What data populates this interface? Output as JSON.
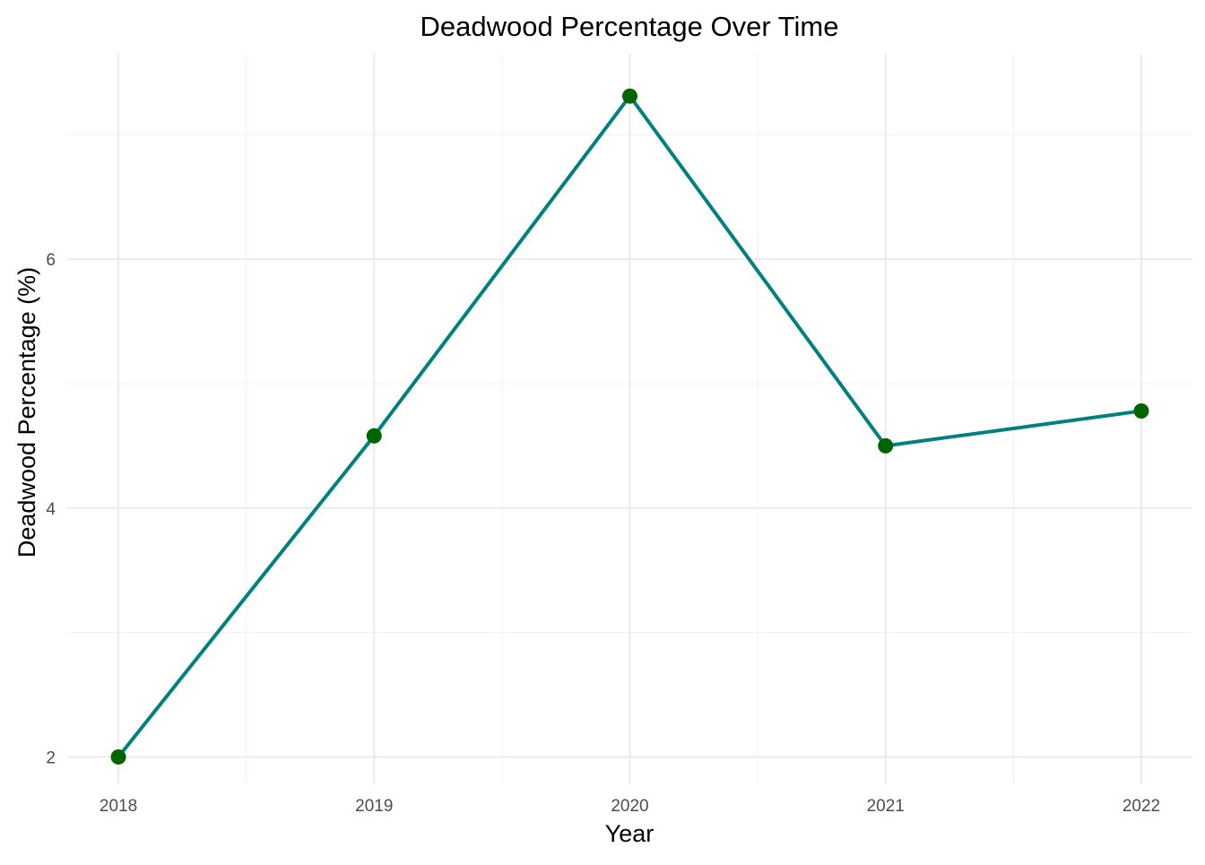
{
  "chart_data": {
    "type": "line",
    "title": "Deadwood Percentage Over Time",
    "xlabel": "Year",
    "ylabel": "Deadwood Percentage (%)",
    "x": [
      2018,
      2019,
      2020,
      2021,
      2022
    ],
    "x_tick_labels": [
      "2018",
      "2019",
      "2020",
      "2021",
      "2022"
    ],
    "y_ticks": [
      2,
      4,
      6
    ],
    "y_tick_labels": [
      "2",
      "4",
      "6"
    ],
    "series": [
      {
        "values": [
          2.0,
          4.58,
          7.31,
          4.5,
          4.78
        ],
        "line_color": "#008080",
        "point_color": "#006400"
      }
    ],
    "xlim": [
      2017.8,
      2022.2
    ],
    "ylim": [
      1.78,
      7.65
    ],
    "grid": true,
    "legend": "none"
  }
}
